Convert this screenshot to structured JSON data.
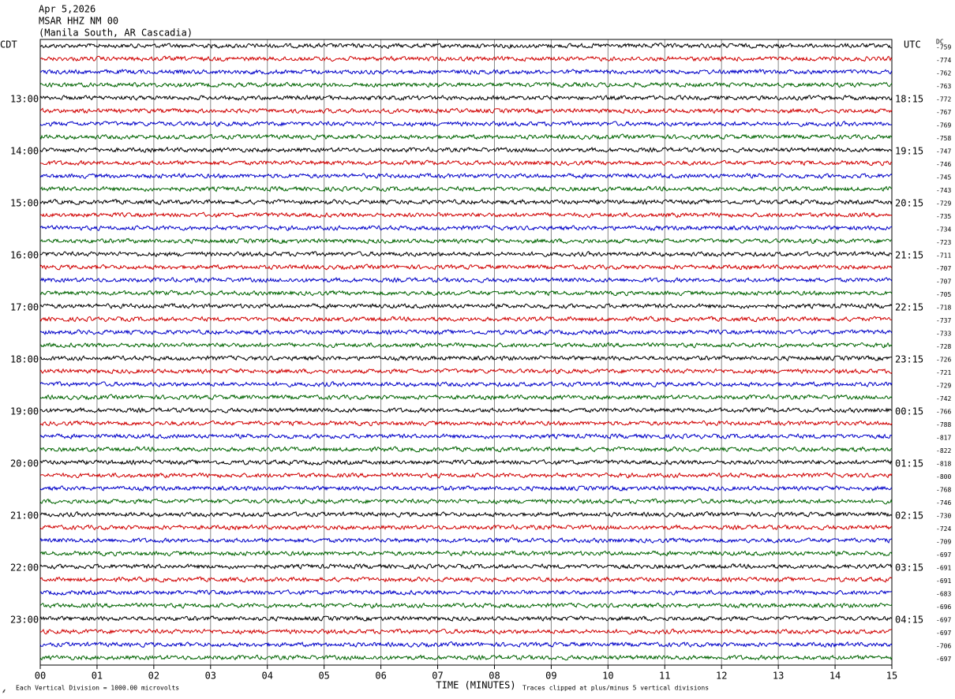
{
  "chart_data": {
    "type": "helicorder",
    "title": "Apr 5,2026",
    "subtitle": "MSAR HHZ NM 00",
    "location": "(Manila South, AR Cascadia)",
    "left_axis_label": "CDT",
    "right_axis_label": "UTC",
    "dc_label": "DC",
    "x_label": "TIME (MINUTES)",
    "scale_note": "Each Vertical Division = 1000.00 microvolts",
    "clip_note": "Traces clipped at plus/minus 5 vertical divisions",
    "colors": [
      "#000000",
      "#d00000",
      "#0000c8",
      "#006400"
    ],
    "xlim": [
      0,
      15
    ],
    "xticks": [
      {
        "value": 0,
        "label": "00"
      },
      {
        "value": 1,
        "label": "01"
      },
      {
        "value": 2,
        "label": "02"
      },
      {
        "value": 3,
        "label": "03"
      },
      {
        "value": 4,
        "label": "04"
      },
      {
        "value": 5,
        "label": "05"
      },
      {
        "value": 6,
        "label": "06"
      },
      {
        "value": 7,
        "label": "07"
      },
      {
        "value": 8,
        "label": "08"
      },
      {
        "value": 9,
        "label": "09"
      },
      10,
      11,
      12,
      13,
      14,
      15
    ],
    "left_labels": [
      null,
      null,
      null,
      null,
      "13:00",
      null,
      null,
      null,
      "14:00",
      null,
      null,
      null,
      "15:00",
      null,
      null,
      null,
      "16:00",
      null,
      null,
      null,
      "17:00",
      null,
      null,
      null,
      "18:00",
      null,
      null,
      null,
      "19:00",
      null,
      null,
      null,
      "20:00",
      null,
      null,
      null,
      "21:00",
      null,
      null,
      null,
      "22:00",
      null,
      null,
      null,
      "23:00",
      null,
      null,
      null
    ],
    "right_labels": [
      null,
      null,
      null,
      null,
      "18:15",
      null,
      null,
      null,
      "19:15",
      null,
      null,
      null,
      "20:15",
      null,
      null,
      null,
      "21:15",
      null,
      null,
      null,
      "22:15",
      null,
      null,
      null,
      "23:15",
      null,
      null,
      null,
      "00:15",
      null,
      null,
      null,
      "01:15",
      null,
      null,
      null,
      "02:15",
      null,
      null,
      null,
      "03:15",
      null,
      null,
      null,
      "04:15",
      null,
      null,
      null
    ],
    "dc_offsets": [
      -759,
      -774,
      -762,
      -763,
      -772,
      -767,
      -769,
      -758,
      -747,
      -746,
      -745,
      -743,
      -729,
      -735,
      -734,
      -723,
      -711,
      -707,
      -707,
      -705,
      -718,
      -737,
      -733,
      -728,
      -726,
      -721,
      -729,
      -742,
      -766,
      -788,
      -817,
      -822,
      -818,
      -800,
      -768,
      -746,
      -730,
      -724,
      -709,
      -697,
      -691,
      -691,
      -683,
      -696,
      -697,
      -697,
      -706,
      -697
    ]
  }
}
